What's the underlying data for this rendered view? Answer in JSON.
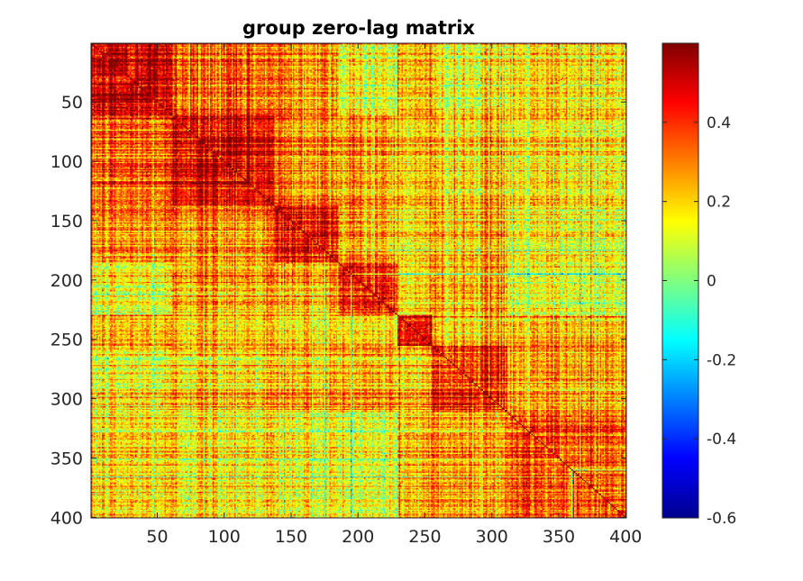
{
  "chart_data": {
    "type": "heatmap",
    "title": "group zero-lag matrix",
    "xlabel": "",
    "ylabel": "",
    "n": 400,
    "xlim": [
      1,
      400
    ],
    "ylim": [
      1,
      400
    ],
    "xticks": [
      50,
      100,
      150,
      200,
      250,
      300,
      350,
      400
    ],
    "yticks": [
      50,
      100,
      150,
      200,
      250,
      300,
      350,
      400
    ],
    "x_tick_labels": [
      "50",
      "100",
      "150",
      "200",
      "250",
      "300",
      "350",
      "400"
    ],
    "y_tick_labels": [
      "50",
      "100",
      "150",
      "200",
      "250",
      "300",
      "350",
      "400"
    ],
    "y_direction": "reverse",
    "colormap": "jet",
    "clim": [
      -0.6,
      0.6
    ],
    "colorbar": {
      "ticks": [
        0.4,
        0.2,
        0,
        -0.2,
        -0.4,
        -0.6
      ],
      "tick_labels": [
        "0.4",
        "0.2",
        "0",
        "-0.2",
        "-0.4",
        "-0.6"
      ],
      "placement": "right"
    },
    "grid": false,
    "block_boundaries": [
      1,
      62,
      138,
      186,
      230,
      256,
      312,
      400
    ],
    "block_mean_correlation": [
      [
        0.5,
        0.32,
        0.3,
        0.12,
        0.24,
        0.15,
        0.17
      ],
      [
        0.32,
        0.48,
        0.32,
        0.26,
        0.24,
        0.22,
        0.17
      ],
      [
        0.3,
        0.32,
        0.48,
        0.24,
        0.19,
        0.23,
        0.13
      ],
      [
        0.12,
        0.26,
        0.24,
        0.42,
        0.2,
        0.25,
        0.1
      ],
      [
        0.24,
        0.24,
        0.19,
        0.2,
        0.46,
        0.22,
        0.21
      ],
      [
        0.15,
        0.22,
        0.23,
        0.25,
        0.22,
        0.4,
        0.25
      ],
      [
        0.17,
        0.17,
        0.13,
        0.1,
        0.21,
        0.25,
        0.34
      ]
    ]
  }
}
